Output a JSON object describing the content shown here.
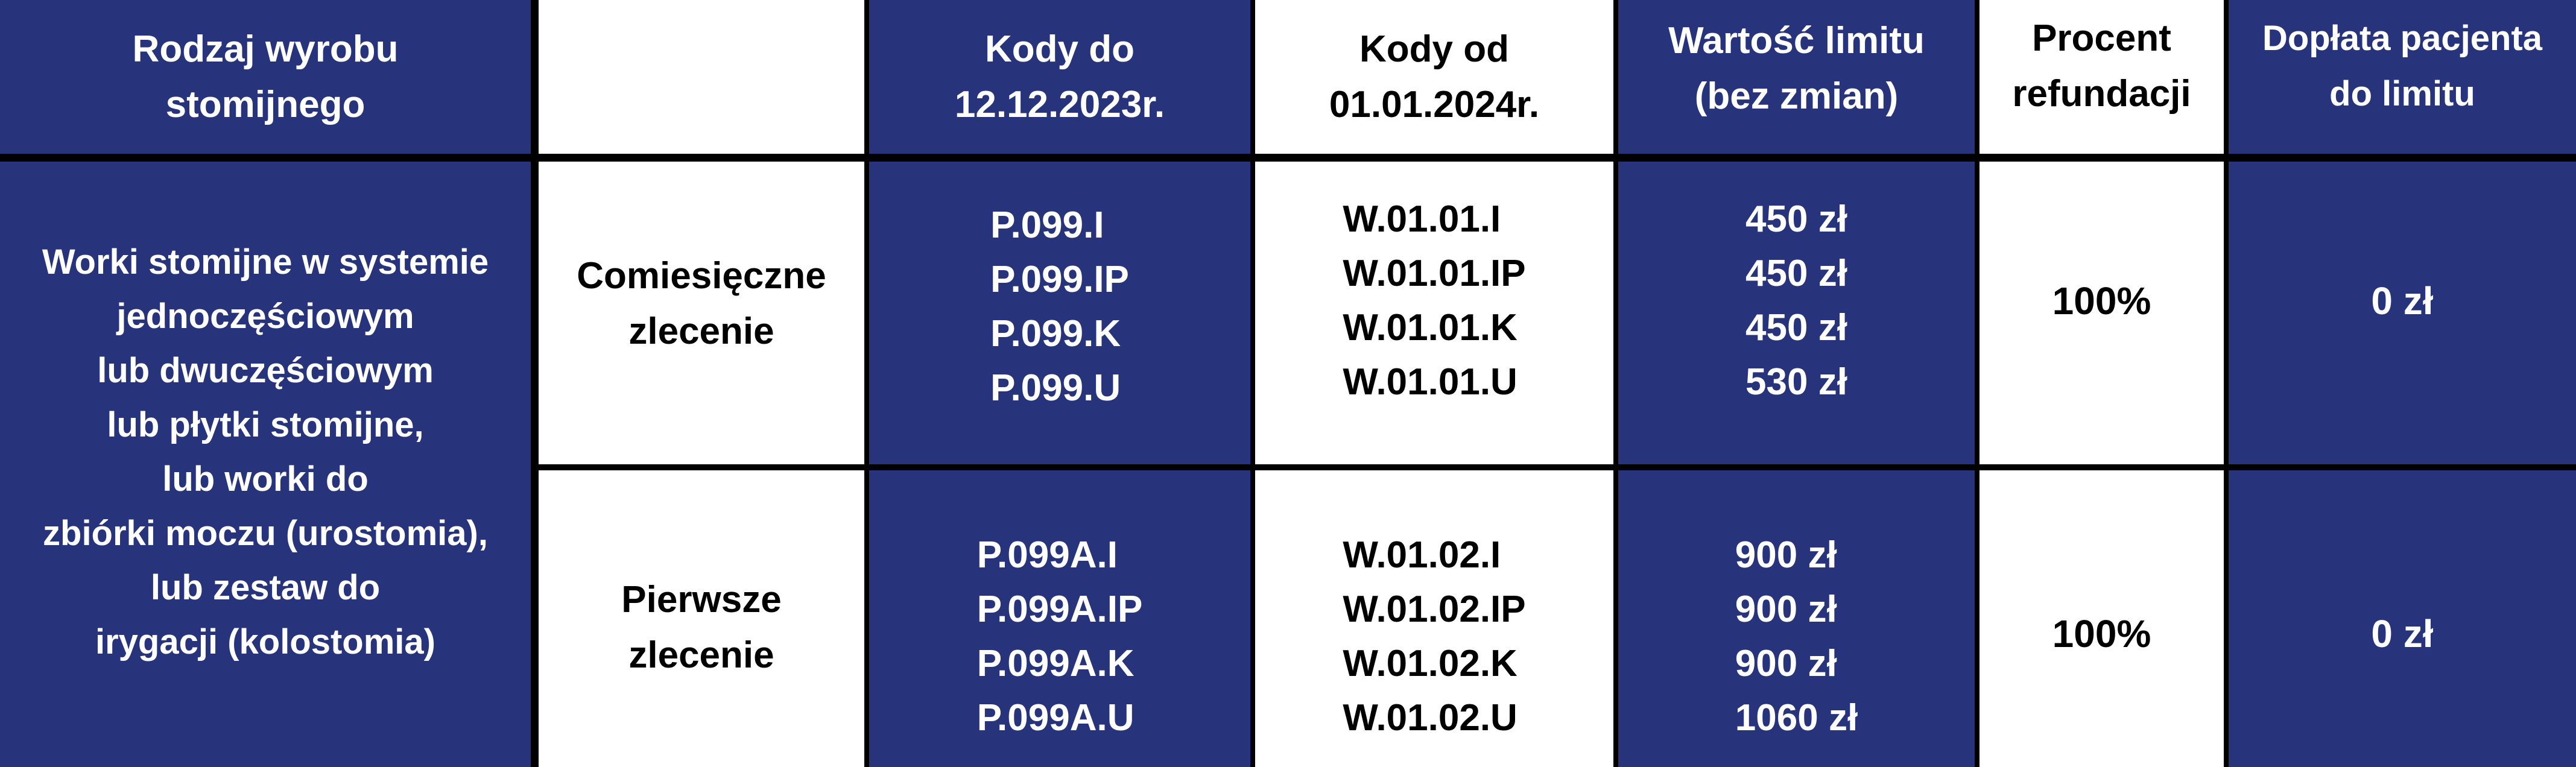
{
  "colors": {
    "blue": "#27347b",
    "white": "#ffffff",
    "border": "#000000"
  },
  "header": {
    "product_type": [
      "Rodzaj wyrobu",
      "stomijnego"
    ],
    "order_type": "",
    "codes_old": [
      "Kody do",
      "12.12.2023r."
    ],
    "codes_new": [
      "Kody od",
      "01.01.2024r."
    ],
    "limit_value": [
      "Wartość limitu",
      "(bez zmian)"
    ],
    "refund_percent": [
      "Procent",
      "refundacji"
    ],
    "patient_copay": [
      "Dopłata pacjenta",
      "do limitu"
    ]
  },
  "product_description": [
    "Worki stomijne w systemie",
    "jednoczęściowym",
    "lub dwuczęściowym",
    "lub płytki stomijne,",
    "lub worki do",
    "zbiórki moczu (urostomia),",
    "lub zestaw do",
    "irygacji (kolostomia)"
  ],
  "rows": [
    {
      "order_type": [
        "Comiesięczne",
        "zlecenie"
      ],
      "codes_old": [
        "P.099.I",
        "P.099.IP",
        "P.099.K",
        "P.099.U"
      ],
      "codes_new": [
        "W.01.01.I",
        "W.01.01.IP",
        "W.01.01.K",
        "W.01.01.U"
      ],
      "limits": [
        "450 zł",
        "450 zł",
        "450 zł",
        "530 zł"
      ],
      "refund_percent": "100%",
      "patient_copay": "0 zł"
    },
    {
      "order_type": [
        "Pierwsze",
        "zlecenie"
      ],
      "codes_old": [
        "P.099A.I",
        "P.099A.IP",
        "P.099A.K",
        "P.099A.U"
      ],
      "codes_new": [
        "W.01.02.I",
        "W.01.02.IP",
        "W.01.02.K",
        "W.01.02.U"
      ],
      "limits": [
        "900 zł",
        "900 zł",
        "900 zł",
        "1060 zł"
      ],
      "refund_percent": "100%",
      "patient_copay": "0 zł"
    }
  ]
}
